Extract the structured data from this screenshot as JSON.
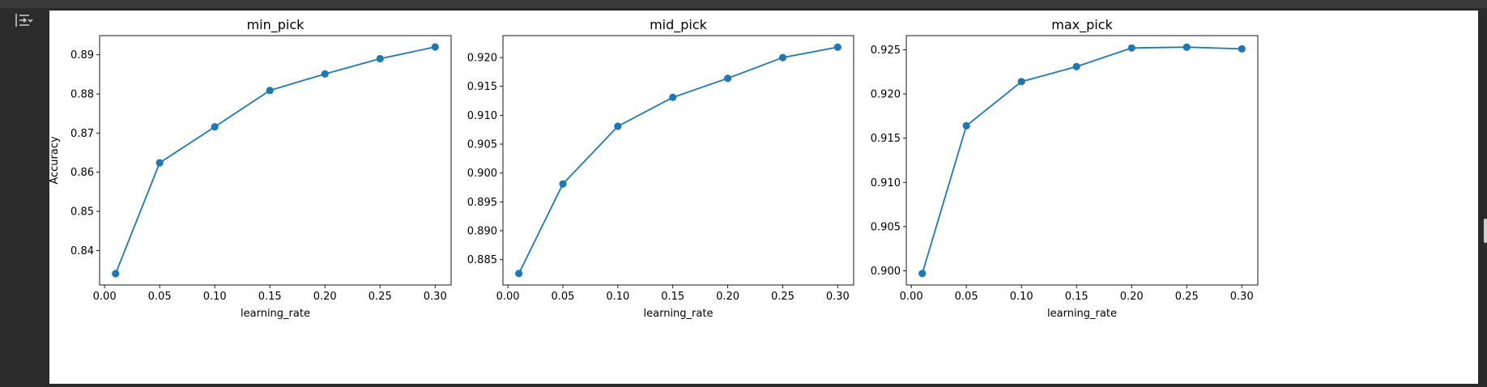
{
  "toolbar": {
    "output_toggle_icon": "collapse-output-icon"
  },
  "chart_data": [
    {
      "type": "line",
      "title": "min_pick",
      "xlabel": "learning_rate",
      "ylabel": "Accuracy",
      "color": "#1f77b4",
      "x": [
        0.01,
        0.05,
        0.1,
        0.15,
        0.2,
        0.25,
        0.3
      ],
      "y": [
        0.8341,
        0.8624,
        0.8716,
        0.8809,
        0.8851,
        0.889,
        0.892
      ],
      "xlim": [
        -0.0045,
        0.3145
      ],
      "ylim": [
        0.8312,
        0.8949
      ],
      "xticks": [
        "0.00",
        "0.05",
        "0.10",
        "0.15",
        "0.20",
        "0.25",
        "0.30"
      ],
      "xtick_values": [
        0,
        0.05,
        0.1,
        0.15,
        0.2,
        0.25,
        0.3
      ],
      "yticks": [
        "0.84",
        "0.85",
        "0.86",
        "0.87",
        "0.88",
        "0.89"
      ],
      "ytick_values": [
        0.84,
        0.85,
        0.86,
        0.87,
        0.88,
        0.89
      ]
    },
    {
      "type": "line",
      "title": "mid_pick",
      "xlabel": "learning_rate",
      "ylabel": "",
      "color": "#1f77b4",
      "x": [
        0.01,
        0.05,
        0.1,
        0.15,
        0.2,
        0.25,
        0.3
      ],
      "y": [
        0.8826,
        0.8981,
        0.9081,
        0.9131,
        0.9164,
        0.92,
        0.9218
      ],
      "xlim": [
        -0.0045,
        0.3145
      ],
      "ylim": [
        0.8806,
        0.9238
      ],
      "xticks": [
        "0.00",
        "0.05",
        "0.10",
        "0.15",
        "0.20",
        "0.25",
        "0.30"
      ],
      "xtick_values": [
        0,
        0.05,
        0.1,
        0.15,
        0.2,
        0.25,
        0.3
      ],
      "yticks": [
        "0.885",
        "0.890",
        "0.895",
        "0.900",
        "0.905",
        "0.910",
        "0.915",
        "0.920"
      ],
      "ytick_values": [
        0.885,
        0.89,
        0.895,
        0.9,
        0.905,
        0.91,
        0.915,
        0.92
      ]
    },
    {
      "type": "line",
      "title": "max_pick",
      "xlabel": "learning_rate",
      "ylabel": "",
      "color": "#1f77b4",
      "x": [
        0.01,
        0.05,
        0.1,
        0.15,
        0.2,
        0.25,
        0.3
      ],
      "y": [
        0.8997,
        0.9164,
        0.9214,
        0.9231,
        0.9252,
        0.9253,
        0.9251
      ],
      "xlim": [
        -0.0045,
        0.3145
      ],
      "ylim": [
        0.8984,
        0.9266
      ],
      "xticks": [
        "0.00",
        "0.05",
        "0.10",
        "0.15",
        "0.20",
        "0.25",
        "0.30"
      ],
      "xtick_values": [
        0,
        0.05,
        0.1,
        0.15,
        0.2,
        0.25,
        0.3
      ],
      "yticks": [
        "0.900",
        "0.905",
        "0.910",
        "0.915",
        "0.920",
        "0.925"
      ],
      "ytick_values": [
        0.9,
        0.905,
        0.91,
        0.915,
        0.92,
        0.925
      ]
    }
  ]
}
